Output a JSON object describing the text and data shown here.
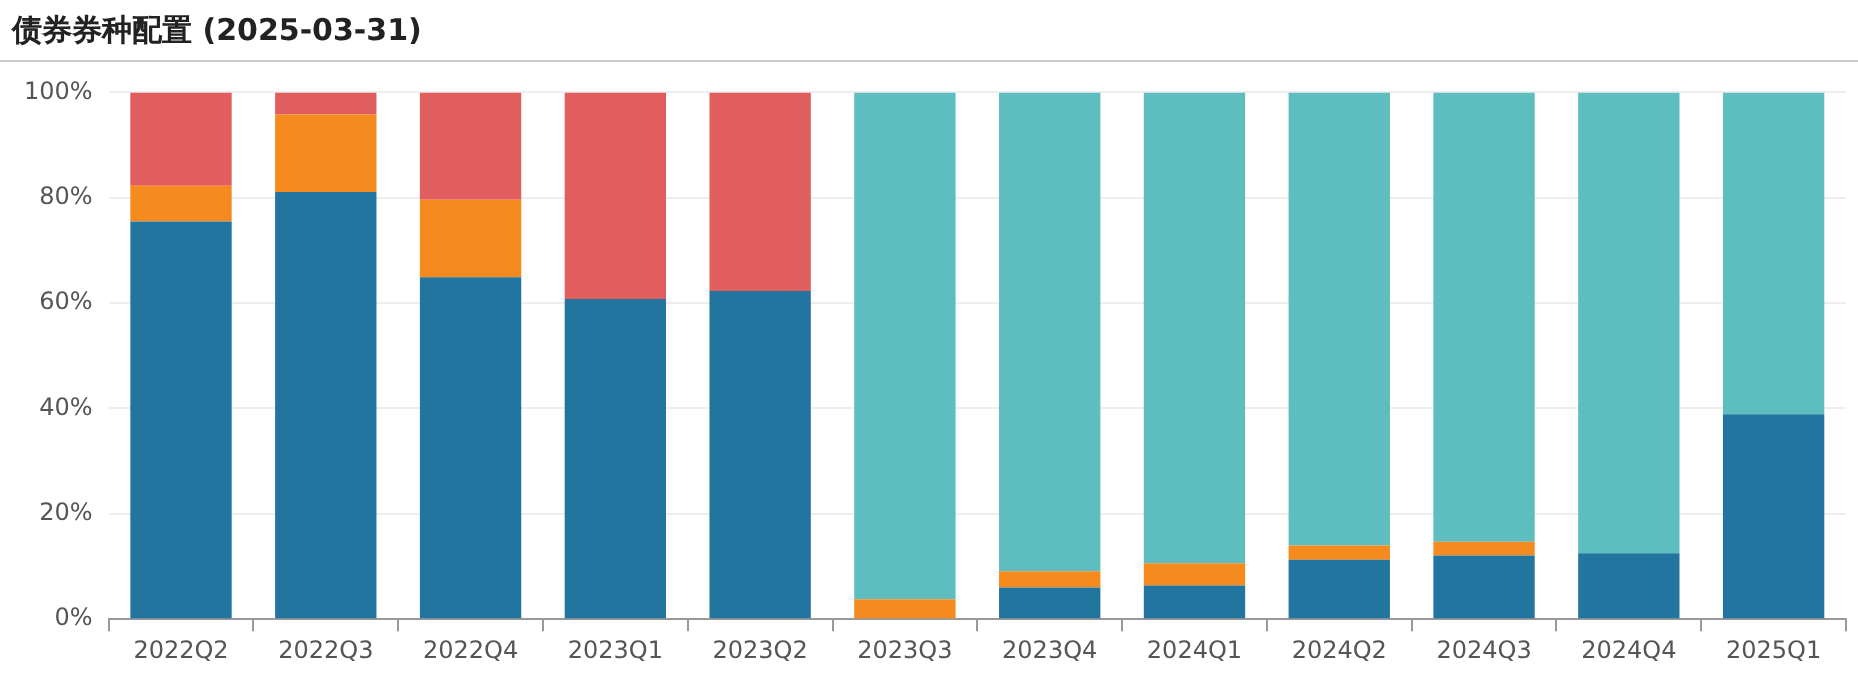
{
  "chart_data": {
    "type": "bar",
    "title": "债券券种配置 (2025-03-31)",
    "stacked": true,
    "categories": [
      "2022Q2",
      "2022Q3",
      "2022Q4",
      "2023Q1",
      "2023Q2",
      "2023Q3",
      "2023Q4",
      "2024Q1",
      "2024Q2",
      "2024Q3",
      "2024Q4",
      "2025Q1"
    ],
    "series": [
      {
        "color": "#21759f",
        "values": [
          75.5,
          81.1,
          64.9,
          60.8,
          62.3,
          0,
          6.0,
          6.4,
          11.3,
          12.1,
          12.5,
          38.9
        ]
      },
      {
        "color": "#f58a1f",
        "values": [
          6.8,
          14.7,
          14.7,
          0,
          0,
          3.8,
          3.1,
          4.2,
          2.7,
          2.6,
          0,
          0
        ]
      },
      {
        "color": "#e05e5e",
        "values": [
          17.7,
          4.2,
          20.4,
          39.2,
          37.7,
          0,
          0,
          0,
          0,
          0,
          0,
          0
        ]
      },
      {
        "color": "#5dbdbf",
        "values": [
          0,
          0,
          0,
          0,
          0,
          96.2,
          90.9,
          89.4,
          86.0,
          85.3,
          87.5,
          61.1
        ]
      }
    ],
    "ylim": [
      0,
      100
    ],
    "yticks": [
      {
        "value": 0,
        "label": "0%"
      },
      {
        "value": 20,
        "label": "20%"
      },
      {
        "value": 40,
        "label": "40%"
      },
      {
        "value": 60,
        "label": "60%"
      },
      {
        "value": 80,
        "label": "80%"
      },
      {
        "value": 100,
        "label": "100%"
      }
    ],
    "grid": "y",
    "legend": false
  }
}
